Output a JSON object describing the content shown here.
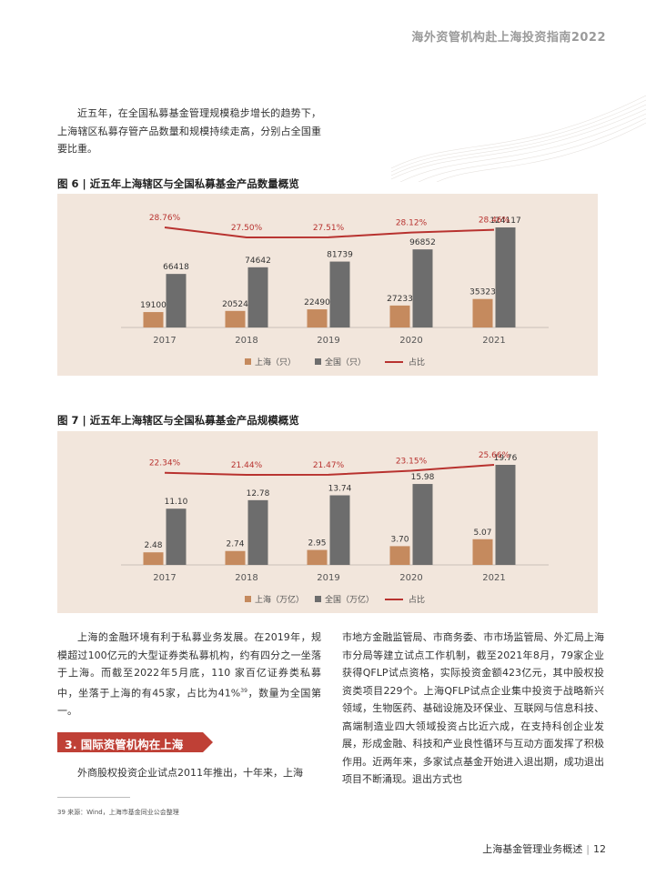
{
  "header": {
    "title": "海外资管机构赴上海投资指南2022"
  },
  "intro": "近五年，在全国私募基金管理规模稳步增长的趋势下，上海辖区私募存管产品数量和规模持续走高，分别占全国重要比重。",
  "figures": [
    {
      "title": "图 6 | 近五年上海辖区与全国私募基金产品数量概览",
      "chart_data": {
        "type": "bar",
        "categories": [
          "2017",
          "2018",
          "2019",
          "2020",
          "2021"
        ],
        "series": [
          {
            "name": "上海（只）",
            "values": [
              19100,
              20524,
              22490,
              27233,
              35323
            ],
            "labels": [
              "19100",
              "20524",
              "22490",
              "27233",
              "35323"
            ],
            "color": "#c58a5e"
          },
          {
            "name": "全国（只）",
            "values": [
              66418,
              74642,
              81739,
              96852,
              124117
            ],
            "labels": [
              "66418",
              "74642",
              "81739",
              "96852",
              "124117"
            ],
            "color": "#6d6d6d"
          }
        ],
        "line": {
          "name": "占比",
          "values": [
            28.76,
            27.5,
            27.51,
            28.12,
            28.46
          ],
          "labels": [
            "28.76%",
            "27.50%",
            "27.51%",
            "28.12%",
            "28.46%"
          ],
          "color": "#b8322f"
        },
        "legend": "bottom"
      }
    },
    {
      "title": "图 7 | 近五年上海辖区与全国私募基金产品规模概览",
      "chart_data": {
        "type": "bar",
        "categories": [
          "2017",
          "2018",
          "2019",
          "2020",
          "2021"
        ],
        "series": [
          {
            "name": "上海（万亿）",
            "values": [
              2.48,
              2.74,
              2.95,
              3.7,
              5.07
            ],
            "labels": [
              "2.48",
              "2.74",
              "2.95",
              "3.70",
              "5.07"
            ],
            "color": "#c58a5e"
          },
          {
            "name": "全国（万亿）",
            "values": [
              11.1,
              12.78,
              13.74,
              15.98,
              19.76
            ],
            "labels": [
              "11.10",
              "12.78",
              "13.74",
              "15.98",
              "19.76"
            ],
            "color": "#6d6d6d"
          }
        ],
        "line": {
          "name": "占比",
          "values": [
            22.34,
            21.44,
            21.47,
            23.15,
            25.66
          ],
          "labels": [
            "22.34%",
            "21.44%",
            "21.47%",
            "23.15%",
            "25.66%"
          ],
          "color": "#b8322f"
        },
        "legend": "bottom"
      }
    }
  ],
  "body_left": {
    "para1_before": "上海的金融环境有利于私募业务发展。在2019年，规模超过100亿元的大型证券类私募机构，约有四分之一坐落于上海。而截至2022年5月底，110 家百亿证券类私募中，坐落于上海的有45家，占比为41%",
    "para1_sup": "39",
    "para1_after": "，数量为全国第一。",
    "section_title": "3. 国际资管机构在上海",
    "para2": "外商股权投资企业试点2011年推出，十年来，上海"
  },
  "body_right": {
    "text": "市地方金融监管局、市商务委、市市场监管局、外汇局上海市分局等建立试点工作机制，截至2021年8月，79家企业获得QFLP试点资格，实际投资金额423亿元，其中股权投资类项目229个。上海QFLP试点企业集中投资于战略新兴领域，生物医药、基础设施及环保业、互联网与信息科技、高端制造业四大领域投资占比近六成，在支持科创企业发展，形成金融、科技和产业良性循环与互动方面发挥了积极作用。近两年来，多家试点基金开始进入退出期，成功退出项目不断涌现。退出方式也"
  },
  "footnote": "39 来源：Wind，上海市基金同业公会整理",
  "footer": {
    "title": "上海基金管理业务概述",
    "sep": "|",
    "page": "12"
  }
}
